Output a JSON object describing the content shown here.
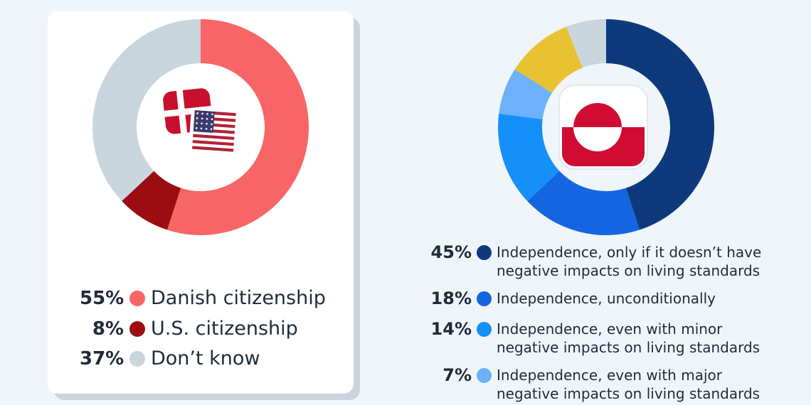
{
  "chart_data": [
    {
      "type": "pie",
      "donut": true,
      "categories": [
        "Danish citizenship",
        "U.S. citizenship",
        "Don’t know"
      ],
      "values": [
        55,
        8,
        37
      ],
      "value_labels": [
        "55%",
        "8%",
        "37%"
      ],
      "colors": [
        "#f76566",
        "#9b0d12",
        "#c9d6de"
      ],
      "center_icons": [
        "denmark-flag",
        "us-flag"
      ]
    },
    {
      "type": "pie",
      "donut": true,
      "categories": [
        "Independence, only if it doesn’t have negative impacts on living standards",
        "Independence, unconditionally",
        "Independence, even with minor negative impacts on living standards",
        "Independence, even with major negative impacts on living standards",
        "",
        ""
      ],
      "values": [
        45,
        18,
        14,
        7,
        10,
        6
      ],
      "value_labels": [
        "45%",
        "18%",
        "14%",
        "7%",
        "",
        ""
      ],
      "colors": [
        "#0e3a7d",
        "#1565e0",
        "#1590fb",
        "#6cb1fa",
        "#e8c233",
        "#c9d6de"
      ],
      "center_icons": [
        "greenland-flag"
      ]
    }
  ]
}
